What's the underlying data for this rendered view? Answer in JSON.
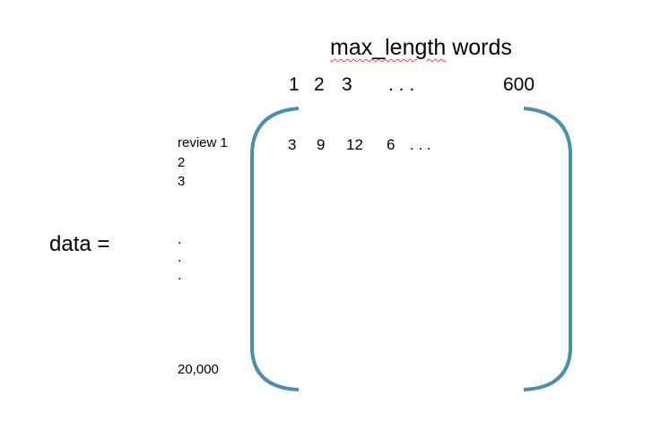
{
  "title": {
    "underlined": "max_length",
    "rest": " words"
  },
  "column_indices": [
    "1",
    "2",
    "3",
    ". . .",
    "600"
  ],
  "row_labels": [
    "review 1",
    "2",
    "3"
  ],
  "row_ellipsis": [
    ".",
    ".",
    "."
  ],
  "last_row_label": "20,000",
  "first_row_values": [
    "3",
    "9",
    "12",
    "6",
    ". . ."
  ],
  "data_label": "data =",
  "colors": {
    "bracket": "#4a8fb0",
    "spellcheck_underline": "#d9534f"
  }
}
